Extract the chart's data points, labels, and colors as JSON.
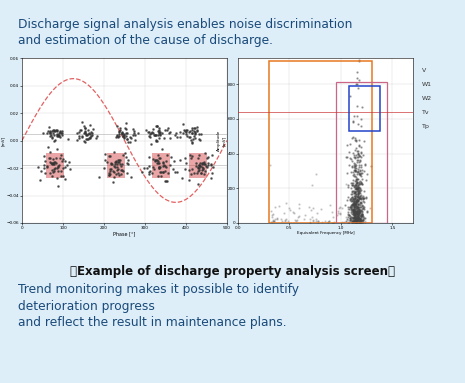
{
  "bg_color": "#ddeef8",
  "title_text1": "Discharge signal analysis enables noise discrimination",
  "title_text2": "and estimation of the cause of discharge.",
  "caption": "〈Example of discharge property analysis screen〉",
  "bottom_text1": "Trend monitoring makes it possible to identify",
  "bottom_text2": "deterioration progress",
  "bottom_text3": "and reflect the result in maintenance plans.",
  "text_color": "#1a4a7a",
  "caption_color": "#111111",
  "font_size_title": 8.8,
  "font_size_caption": 8.5,
  "font_size_bottom": 8.8,
  "left_chart_sine_color": "#e05050",
  "left_chart_cluster_color": "#333333",
  "left_chart_cluster_accent": "#cc2222",
  "right_chart_scatter_color": "#444444",
  "right_chart_orange_rect": "#e87820",
  "right_chart_blue_rect": "#2244cc",
  "right_chart_pink_rect": "#cc6688",
  "legend_labels": [
    "V",
    "W1",
    "W2",
    "Tv",
    "Tp"
  ],
  "legend_color": "#333333"
}
